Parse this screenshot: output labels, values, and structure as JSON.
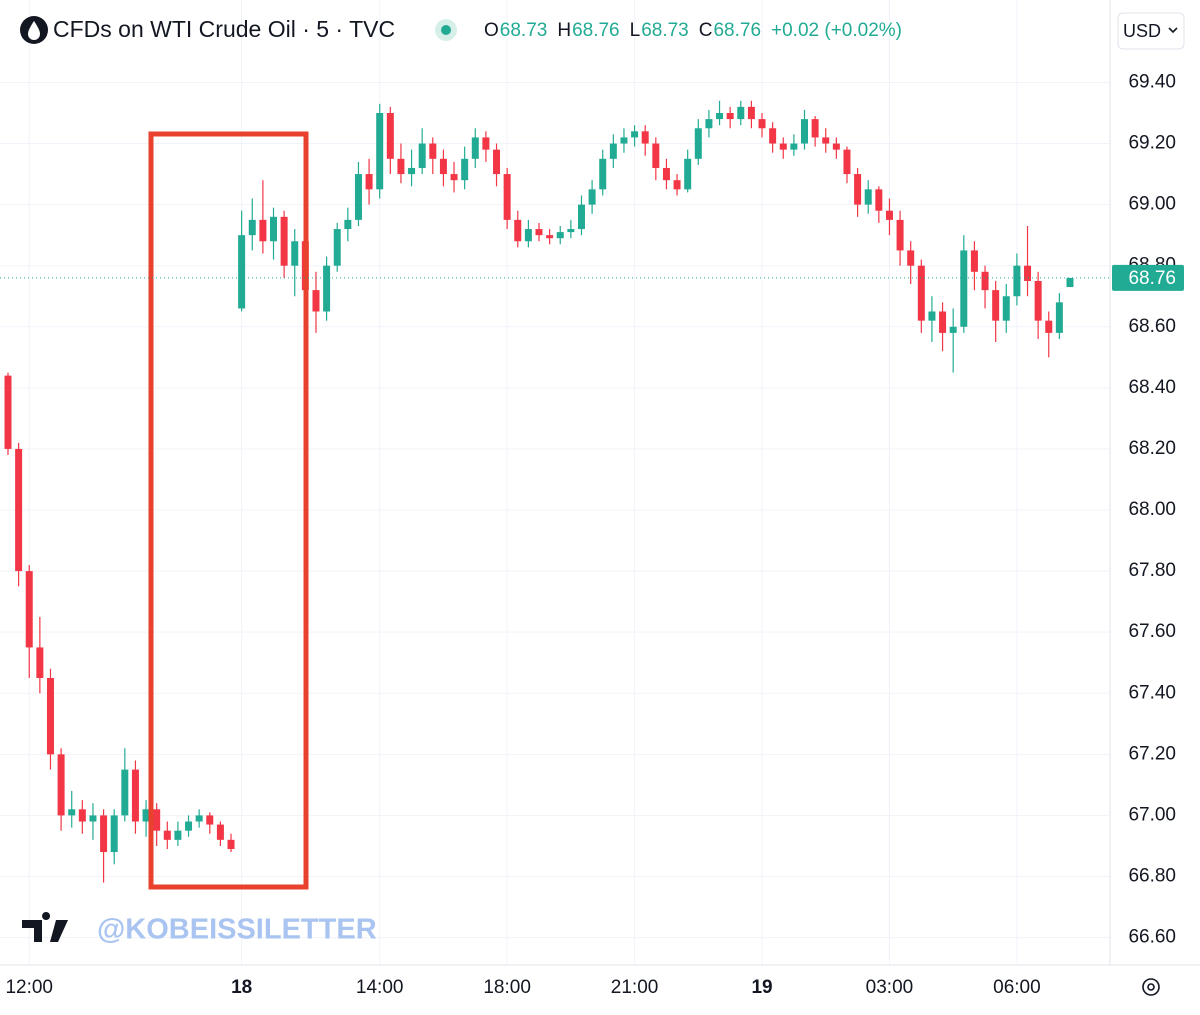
{
  "chart_data": {
    "type": "candlestick",
    "title": "CFDs on WTI Crude Oil · 5 · TVC",
    "ohlc_legend": [
      {
        "key": "O",
        "value": 68.73
      },
      {
        "key": "H",
        "value": 68.76
      },
      {
        "key": "L",
        "value": 68.73
      },
      {
        "key": "C",
        "value": 68.76
      }
    ],
    "change": "+0.02 (+0.02%)",
    "currency": "USD",
    "watermark": "@KOBEISSILETTER",
    "last_price": 68.76,
    "up_color": "#22ab94",
    "down_color": "#f23645",
    "grid": true,
    "ylim": [
      66.52,
      69.67
    ],
    "yticks": [
      {
        "value": 66.6,
        "label": "66.60"
      },
      {
        "value": 66.8,
        "label": "66.80"
      },
      {
        "value": 67.0,
        "label": "67.00"
      },
      {
        "value": 67.2,
        "label": "67.20"
      },
      {
        "value": 67.4,
        "label": "67.40"
      },
      {
        "value": 67.6,
        "label": "67.60"
      },
      {
        "value": 67.8,
        "label": "67.80"
      },
      {
        "value": 68.0,
        "label": "68.00"
      },
      {
        "value": 68.2,
        "label": "68.20"
      },
      {
        "value": 68.4,
        "label": "68.40"
      },
      {
        "value": 68.6,
        "label": "68.60"
      },
      {
        "value": 68.8,
        "label": "68.80"
      },
      {
        "value": 69.0,
        "label": "69.00"
      },
      {
        "value": 69.2,
        "label": "69.20"
      },
      {
        "value": 69.4,
        "label": "69.40"
      }
    ],
    "categories": [
      null,
      null,
      "12:00",
      null,
      null,
      null,
      null,
      null,
      null,
      null,
      null,
      null,
      null,
      null,
      null,
      null,
      null,
      null,
      null,
      null,
      null,
      null,
      "18",
      null,
      null,
      null,
      null,
      null,
      null,
      null,
      null,
      null,
      null,
      null,
      null,
      "14:00",
      null,
      null,
      null,
      null,
      null,
      null,
      null,
      null,
      null,
      null,
      null,
      "18:00",
      null,
      null,
      null,
      null,
      null,
      null,
      null,
      null,
      null,
      null,
      null,
      "21:00",
      null,
      null,
      null,
      null,
      null,
      null,
      null,
      null,
      null,
      null,
      null,
      "19",
      null,
      null,
      null,
      null,
      null,
      null,
      null,
      null,
      null,
      null,
      null,
      "03:00",
      null,
      null,
      null,
      null,
      null,
      null,
      null,
      null,
      null,
      null,
      null,
      "06:00",
      null,
      null,
      null,
      null,
      null
    ],
    "open": [
      68.44,
      68.2,
      67.8,
      67.55,
      67.45,
      67.2,
      67.0,
      67.02,
      66.98,
      67.0,
      66.88,
      67.0,
      67.15,
      66.98,
      67.02,
      66.95,
      66.92,
      66.95,
      66.98,
      67.0,
      66.97,
      66.92,
      68.66,
      68.9,
      68.95,
      68.88,
      68.96,
      68.8,
      68.88,
      68.72,
      68.65,
      68.8,
      68.92,
      68.95,
      69.1,
      69.05,
      69.3,
      69.15,
      69.1,
      69.12,
      69.2,
      69.15,
      69.1,
      69.08,
      69.15,
      69.22,
      69.18,
      69.1,
      68.95,
      68.88,
      68.92,
      68.9,
      68.89,
      68.91,
      68.92,
      69.0,
      69.05,
      69.15,
      69.2,
      69.22,
      69.24,
      69.2,
      69.12,
      69.08,
      69.05,
      69.15,
      69.25,
      69.28,
      69.3,
      69.28,
      69.32,
      69.28,
      69.25,
      69.2,
      69.18,
      69.2,
      69.28,
      69.22,
      69.2,
      69.18,
      69.1,
      69.0,
      69.05,
      68.98,
      68.95,
      68.85,
      68.8,
      68.62,
      68.65,
      68.58,
      68.6,
      68.85,
      68.78,
      68.72,
      68.62,
      68.7,
      68.8,
      68.75,
      68.62,
      68.58,
      68.73
    ],
    "high": [
      68.45,
      68.22,
      67.82,
      67.65,
      67.48,
      67.22,
      67.08,
      67.05,
      67.04,
      67.02,
      67.02,
      67.22,
      67.18,
      67.05,
      67.04,
      66.98,
      66.98,
      67.0,
      67.02,
      67.01,
      66.98,
      66.94,
      68.98,
      69.02,
      69.08,
      68.99,
      68.98,
      68.92,
      68.92,
      68.78,
      68.83,
      68.94,
      68.99,
      69.14,
      69.15,
      69.33,
      69.32,
      69.2,
      69.18,
      69.25,
      69.22,
      69.18,
      69.14,
      69.19,
      69.25,
      69.24,
      69.2,
      69.12,
      68.98,
      68.95,
      68.94,
      68.92,
      68.93,
      68.95,
      69.03,
      69.08,
      69.18,
      69.23,
      69.25,
      69.26,
      69.26,
      69.22,
      69.15,
      69.1,
      69.18,
      69.28,
      69.31,
      69.34,
      69.32,
      69.34,
      69.34,
      69.3,
      69.27,
      69.22,
      69.23,
      69.31,
      69.29,
      69.25,
      69.22,
      69.19,
      69.12,
      69.08,
      69.06,
      69.02,
      68.98,
      68.88,
      68.82,
      68.7,
      68.68,
      68.66,
      68.9,
      68.88,
      68.8,
      68.75,
      68.74,
      68.84,
      68.93,
      68.78,
      68.65,
      68.71,
      68.76
    ],
    "low": [
      68.18,
      67.75,
      67.45,
      67.4,
      67.15,
      66.95,
      66.96,
      66.94,
      66.92,
      66.78,
      66.84,
      66.98,
      66.94,
      66.93,
      66.9,
      66.89,
      66.9,
      66.93,
      66.96,
      66.94,
      66.9,
      66.88,
      68.65,
      68.85,
      68.84,
      68.82,
      68.76,
      68.7,
      68.68,
      68.58,
      68.62,
      68.78,
      68.88,
      68.93,
      69.0,
      69.02,
      69.1,
      69.07,
      69.06,
      69.1,
      69.1,
      69.06,
      69.04,
      69.05,
      69.12,
      69.14,
      69.06,
      68.92,
      68.86,
      68.86,
      68.88,
      68.87,
      68.87,
      68.89,
      68.9,
      68.97,
      69.03,
      69.12,
      69.17,
      69.19,
      69.16,
      69.08,
      69.05,
      69.03,
      69.04,
      69.13,
      69.22,
      69.26,
      69.25,
      69.26,
      69.25,
      69.22,
      69.17,
      69.15,
      69.16,
      69.18,
      69.19,
      69.17,
      69.15,
      69.07,
      68.96,
      68.97,
      68.94,
      68.9,
      68.8,
      68.74,
      68.58,
      68.55,
      68.52,
      68.45,
      68.58,
      68.72,
      68.66,
      68.55,
      68.58,
      68.67,
      68.7,
      68.56,
      68.5,
      68.56,
      68.73
    ],
    "close": [
      68.2,
      67.8,
      67.55,
      67.45,
      67.2,
      67.0,
      67.02,
      66.98,
      67.0,
      66.88,
      67.0,
      67.15,
      66.98,
      67.02,
      66.95,
      66.92,
      66.95,
      66.98,
      67.0,
      66.97,
      66.92,
      66.89,
      68.9,
      68.95,
      68.88,
      68.96,
      68.8,
      68.88,
      68.72,
      68.65,
      68.8,
      68.92,
      68.95,
      69.1,
      69.05,
      69.3,
      69.15,
      69.1,
      69.12,
      69.2,
      69.15,
      69.1,
      69.08,
      69.15,
      69.22,
      69.18,
      69.1,
      68.95,
      68.88,
      68.92,
      68.9,
      68.89,
      68.91,
      68.92,
      69.0,
      69.05,
      69.15,
      69.2,
      69.22,
      69.24,
      69.2,
      69.12,
      69.08,
      69.05,
      69.15,
      69.25,
      69.28,
      69.3,
      69.28,
      69.32,
      69.28,
      69.25,
      69.2,
      69.18,
      69.2,
      69.28,
      69.22,
      69.2,
      69.18,
      69.1,
      69.0,
      69.05,
      68.98,
      68.95,
      68.85,
      68.8,
      68.62,
      68.65,
      68.58,
      68.6,
      68.85,
      68.78,
      68.72,
      68.62,
      68.7,
      68.8,
      68.75,
      68.62,
      68.58,
      68.68,
      68.76
    ]
  }
}
